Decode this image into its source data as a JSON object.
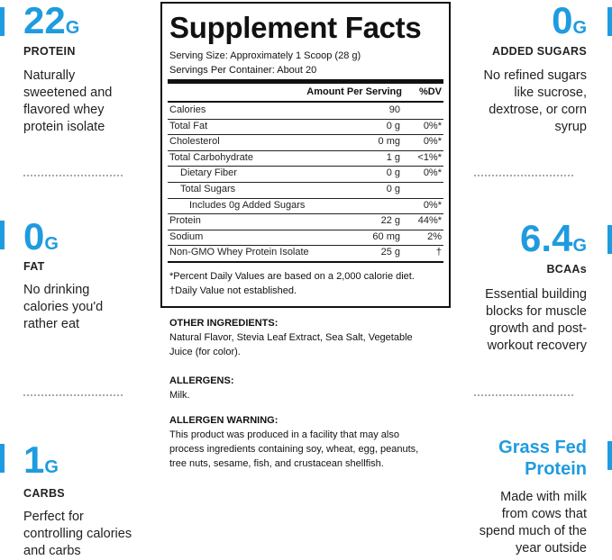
{
  "left": [
    {
      "value": "22",
      "unit": "G",
      "label": "PROTEIN",
      "desc": [
        "Naturally",
        "sweetened and",
        "flavored whey",
        "protein isolate"
      ]
    },
    {
      "value": "0",
      "unit": "G",
      "label": "FAT",
      "desc": [
        "No drinking",
        "calories you'd",
        "rather eat"
      ]
    },
    {
      "value": "1",
      "unit": "G",
      "label": "CARBS",
      "desc": [
        "Perfect for",
        "controlling calories",
        "and carbs"
      ]
    }
  ],
  "right": [
    {
      "value": "0",
      "unit": "G",
      "label": "ADDED SUGARS",
      "desc": [
        "No refined sugars",
        "like sucrose,",
        "dextrose, or corn",
        "syrup"
      ]
    },
    {
      "value": "6.4",
      "unit": "G",
      "label": "BCAAs",
      "desc": [
        "Essential building",
        "blocks for muscle",
        "growth and post-",
        "workout recovery"
      ]
    },
    {
      "title": [
        "Grass Fed",
        "Protein"
      ],
      "desc": [
        "Made with milk",
        "from cows that",
        "spend much of the",
        "year outside"
      ]
    }
  ],
  "facts": {
    "title": "Supplement Facts",
    "serving_size": "Serving Size: Approximately 1 Scoop (28 g)",
    "servings": "Servings Per Container: About 20",
    "header": [
      "Amount Per Serving",
      "%DV"
    ],
    "rows": [
      [
        "Calories",
        "90",
        ""
      ],
      [
        "Total Fat",
        "0 g",
        "0%*"
      ],
      [
        "Cholesterol",
        "0 mg",
        "0%*"
      ],
      [
        "Total Carbohydrate",
        "1 g",
        "<1%*"
      ],
      [
        "Dietary Fiber",
        "0 g",
        "0%*"
      ],
      [
        "Total Sugars",
        "0 g",
        ""
      ],
      [
        "Includes 0g Added Sugars",
        "",
        "0%*"
      ],
      [
        "Protein",
        "22 g",
        "44%*"
      ],
      [
        "Sodium",
        "60 mg",
        "2%"
      ],
      [
        "Non-GMO Whey Protein Isolate",
        "25 g",
        "†"
      ]
    ],
    "footnotes": [
      "*Percent Daily Values are based on a 2,000 calorie diet.",
      "†Daily Value not established."
    ]
  },
  "info": [
    {
      "heading": "OTHER INGREDIENTS:",
      "text": [
        "Natural Flavor, Stevia Leaf Extract, Sea Salt, Vegetable",
        "Juice (for color)."
      ]
    },
    {
      "heading": "ALLERGENS:",
      "text": [
        "Milk."
      ]
    },
    {
      "heading": "ALLERGEN WARNING:",
      "text": [
        "This product was produced in a facility that may also",
        "process ingredients containing soy, wheat, egg, peanuts,",
        "tree nuts, sesame, fish, and crustacean shellfish."
      ]
    }
  ]
}
